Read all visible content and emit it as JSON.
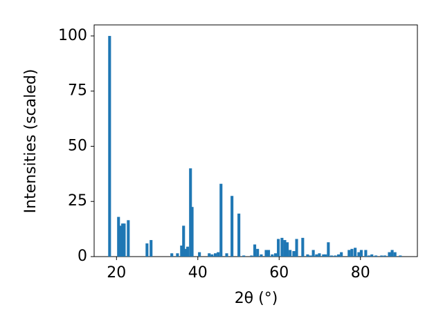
{
  "chart_data": {
    "type": "bar",
    "xlabel": "2θ (°)",
    "ylabel": "Intensities (scaled)",
    "color": "#1f77b4",
    "x": [
      18.3,
      20.5,
      21.0,
      21.5,
      21.9,
      22.9,
      27.5,
      28.5,
      33.6,
      35.0,
      36.0,
      36.5,
      37.0,
      37.5,
      38.2,
      38.6,
      40.4,
      42.8,
      43.5,
      44.3,
      45.0,
      45.7,
      47.1,
      48.4,
      50.1,
      51.3,
      53.2,
      54.0,
      54.7,
      55.6,
      56.8,
      57.4,
      58.3,
      59.1,
      59.8,
      60.7,
      61.4,
      62.0,
      62.7,
      63.6,
      64.3,
      65.8,
      67.0,
      67.7,
      68.4,
      69.2,
      69.9,
      70.9,
      71.4,
      72.1,
      72.9,
      73.8,
      74.6,
      75.3,
      77.2,
      77.9,
      78.7,
      79.6,
      80.2,
      81.3,
      82.1,
      82.8,
      83.8,
      85.2,
      86.0,
      87.1,
      87.8,
      88.5,
      89.8
    ],
    "values": [
      100,
      18,
      14,
      15,
      15,
      16.5,
      6,
      7.5,
      1.5,
      1.5,
      5,
      14,
      3.5,
      4.5,
      40,
      22.5,
      2,
      1.5,
      1,
      1.5,
      2,
      33,
      1.5,
      27.5,
      19.5,
      0.5,
      0.5,
      5.5,
      3.5,
      1,
      3,
      3,
      1,
      1.5,
      8,
      8.5,
      7.5,
      6.5,
      3,
      2.5,
      8,
      8.5,
      1,
      0.5,
      3,
      1,
      1.5,
      1,
      1,
      6.5,
      0.5,
      0.5,
      1,
      2,
      3,
      3.5,
      4,
      2,
      3,
      3,
      0.5,
      1,
      0.5,
      0.5,
      0.5,
      2,
      3,
      2,
      0.5
    ],
    "xlim": [
      14.5,
      94
    ],
    "ylim": [
      0,
      105
    ],
    "xticks": [
      20,
      40,
      60,
      80
    ],
    "yticks": [
      0,
      25,
      50,
      75,
      100
    ]
  }
}
